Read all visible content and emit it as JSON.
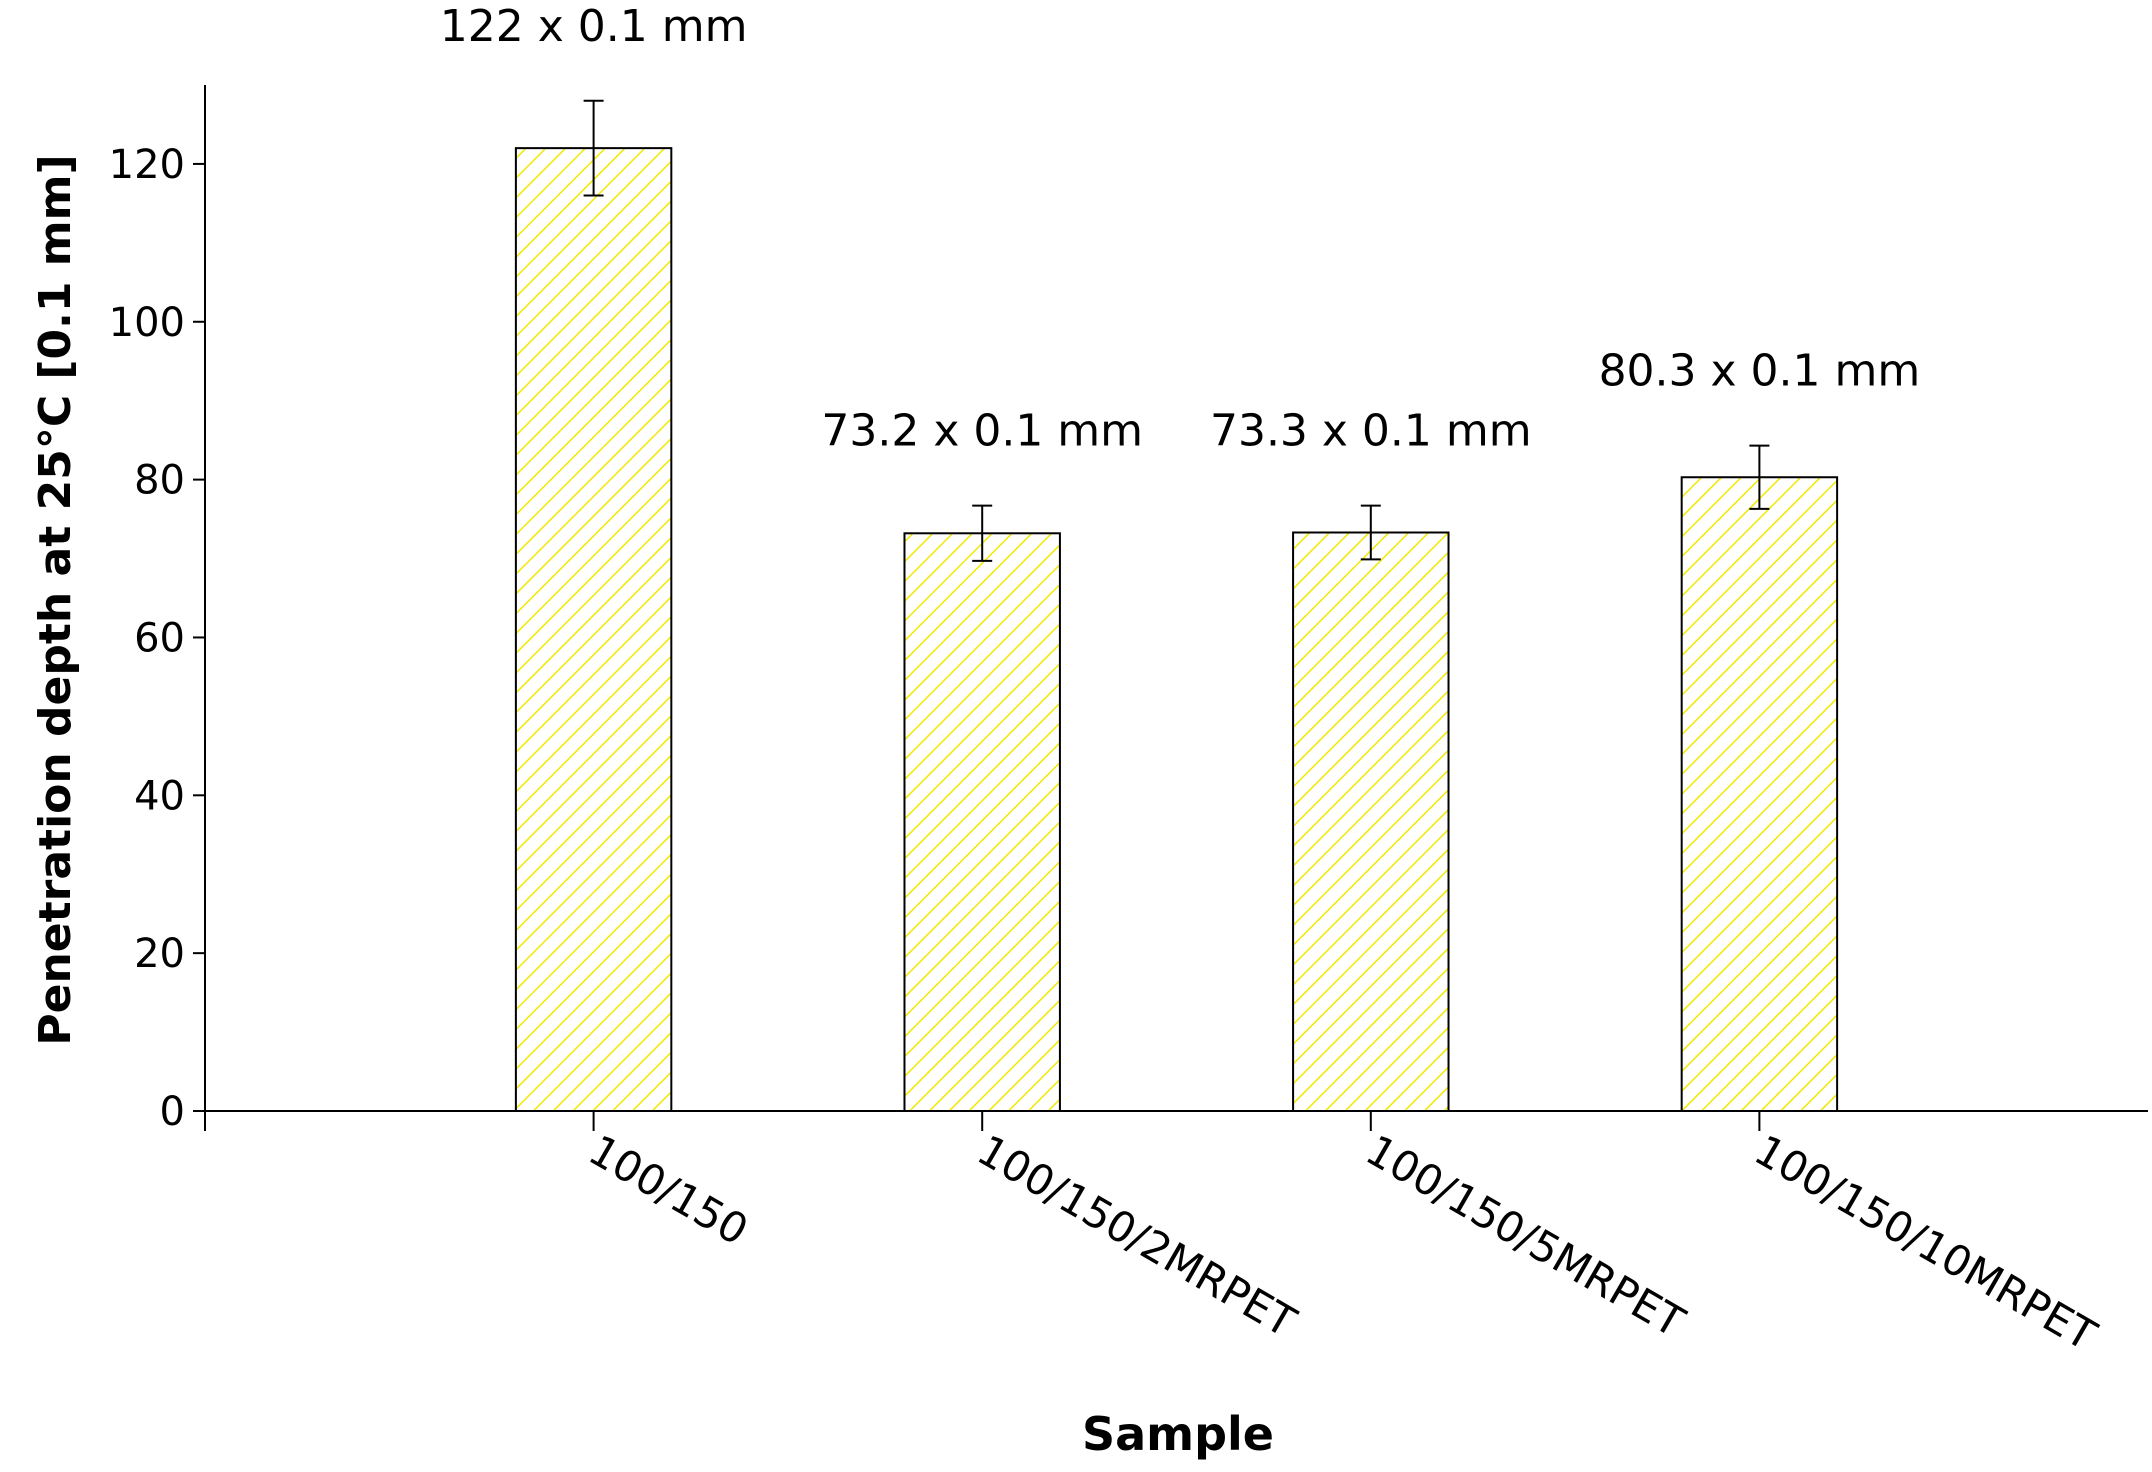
{
  "chart_data": {
    "type": "bar",
    "x_label": "Sample",
    "y_label": "Penetration depth at 25°C [0.1 mm]",
    "categories": [
      "100/150",
      "100/150/2MRPET",
      "100/150/5MRPET",
      "100/150/10MRPET"
    ],
    "values": [
      122,
      73.2,
      73.3,
      80.3
    ],
    "errors": [
      6,
      3.5,
      3.4,
      4
    ],
    "value_labels": [
      "122 x 0.1 mm",
      "73.2 x 0.1 mm",
      "73.3 x 0.1 mm",
      "80.3 x 0.1 mm"
    ],
    "color": "#f2e800",
    "ylim": [
      0,
      130
    ],
    "yticks": [
      0,
      20,
      40,
      60,
      80,
      100,
      120
    ],
    "grid": false
  }
}
